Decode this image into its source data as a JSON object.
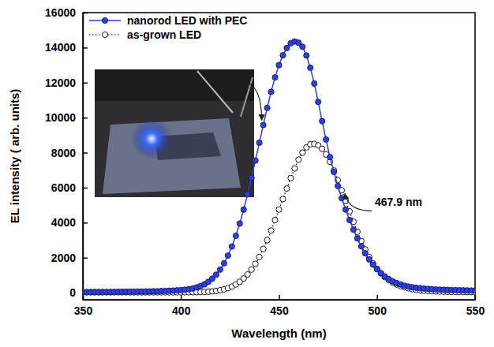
{
  "chart_data": {
    "type": "line",
    "x_label": "Wavelength (nm)",
    "y_label": "EL intensity ( arb. units)",
    "xlim": [
      350,
      550
    ],
    "xticks": [
      350,
      400,
      450,
      500,
      550
    ],
    "ylim": [
      -400,
      16000
    ],
    "yticks": [
      0,
      2000,
      4000,
      6000,
      8000,
      10000,
      12000,
      14000,
      16000
    ],
    "grid": false,
    "legend": "upper left",
    "x": [
      350,
      352,
      354,
      356,
      358,
      360,
      362,
      364,
      366,
      368,
      370,
      372,
      374,
      376,
      378,
      380,
      382,
      384,
      386,
      388,
      390,
      392,
      394,
      396,
      398,
      400,
      402,
      404,
      406,
      408,
      410,
      412,
      414,
      416,
      418,
      420,
      422,
      424,
      426,
      428,
      430,
      432,
      434,
      436,
      438,
      440,
      442,
      444,
      446,
      448,
      450,
      452,
      454,
      456,
      458,
      460,
      462,
      464,
      466,
      468,
      470,
      472,
      474,
      476,
      478,
      480,
      482,
      484,
      486,
      488,
      490,
      492,
      494,
      496,
      498,
      500,
      502,
      504,
      506,
      508,
      510,
      512,
      514,
      516,
      518,
      520,
      522,
      524,
      526,
      528,
      530,
      532,
      534,
      536,
      538,
      540,
      542,
      544,
      546,
      548,
      550
    ],
    "series": [
      {
        "name": "nanorod LED with PEC",
        "color": "#2f3fd8",
        "marker": "circle",
        "line_style": "solid",
        "values": [
          40,
          40,
          42,
          42,
          44,
          45,
          46,
          48,
          50,
          52,
          54,
          56,
          58,
          60,
          63,
          66,
          70,
          74,
          78,
          84,
          90,
          98,
          108,
          120,
          135,
          150,
          170,
          200,
          240,
          300,
          380,
          480,
          620,
          800,
          1030,
          1320,
          1680,
          2120,
          2640,
          3250,
          3950,
          4750,
          5620,
          6560,
          7550,
          8570,
          9580,
          10560,
          11480,
          12300,
          13000,
          13560,
          13980,
          14250,
          14350,
          14280,
          14050,
          13550,
          12850,
          11950,
          10900,
          9800,
          8750,
          7750,
          6900,
          6100,
          5400,
          4750,
          4150,
          3600,
          3100,
          2650,
          2250,
          1900,
          1600,
          1340,
          1120,
          930,
          780,
          650,
          550,
          470,
          400,
          350,
          310,
          280,
          255,
          235,
          215,
          200,
          185,
          175,
          165,
          155,
          150,
          145,
          140,
          135,
          130,
          125,
          120
        ]
      },
      {
        "name": "as-grown LED",
        "color": "#000000",
        "marker": "open circle",
        "line_style": "dotted",
        "values": [
          20,
          20,
          20,
          20,
          20,
          20,
          20,
          20,
          20,
          20,
          20,
          20,
          20,
          20,
          20,
          20,
          20,
          20,
          20,
          20,
          20,
          20,
          20,
          20,
          22,
          22,
          24,
          26,
          28,
          30,
          35,
          40,
          55,
          75,
          100,
          140,
          190,
          260,
          350,
          470,
          620,
          810,
          1040,
          1320,
          1650,
          2040,
          2500,
          3000,
          3550,
          4150,
          4750,
          5350,
          5950,
          6550,
          7100,
          7600,
          8000,
          8300,
          8480,
          8500,
          8420,
          8220,
          7900,
          7480,
          6980,
          6430,
          5850,
          5250,
          4650,
          4050,
          3480,
          2950,
          2470,
          2040,
          1670,
          1360,
          1100,
          890,
          720,
          580,
          470,
          380,
          310,
          250,
          200,
          160,
          130,
          110,
          95,
          80,
          70,
          62,
          55,
          50,
          45,
          42,
          40,
          38,
          37,
          36,
          35
        ]
      }
    ],
    "annotations": [
      {
        "text": "467.9 nm",
        "series": 1,
        "x": 482
      }
    ]
  }
}
